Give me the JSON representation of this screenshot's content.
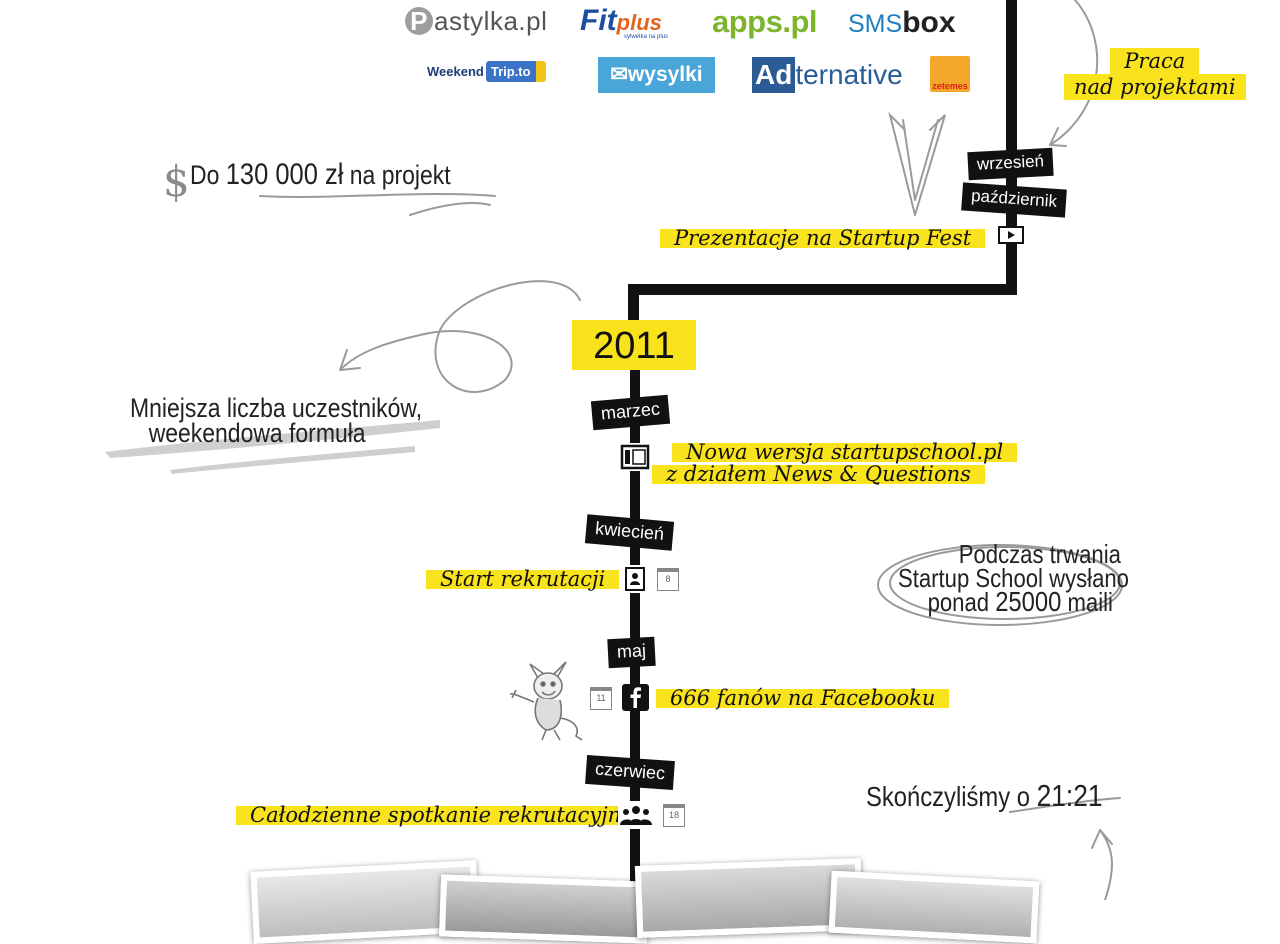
{
  "logos": {
    "pastylka": "astylka.pl",
    "pastylka_mark": "P",
    "fitplus_fit": "Fit",
    "fitplus_plus": "plus",
    "fitplus_tag": "sylwetka na plus",
    "apps": "apps.pl",
    "sms_sms": "SMS",
    "sms_box": "box",
    "weekend": "Weekend",
    "weekend_trip": "Trip.to",
    "wysylki": "✉wysylki",
    "adter_ad": "Ad",
    "adter_rest": "ternative",
    "zetemes": "zetemes"
  },
  "timeline": {
    "year": "2011",
    "months": {
      "wrzesien": "wrzesień",
      "pazdziernik": "październik",
      "marzec": "marzec",
      "kwiecien": "kwiecień",
      "maj": "maj",
      "czerwiec": "czerwiec"
    },
    "events": {
      "startup_fest": "Prezentacje na Startup Fest",
      "nowa_wersja_1": "Nowa wersja startupschool.pl",
      "nowa_wersja_2": "z działem News & Questions",
      "rekrutacja": "Start rekrutacji",
      "facebook": "666 fanów na Facebooku",
      "spotkanie": "Całodzienne spotkanie rekrutacyjne",
      "praca_1": "Praca",
      "praca_2": "nad projektami"
    },
    "calendar_days": {
      "rekrutacja": "8",
      "facebook": "11",
      "spotkanie": "18"
    }
  },
  "notes": {
    "projekt_prefix": "Do ",
    "projekt_amount": "130 000 zł",
    "projekt_suffix": " na projekt",
    "dollar": "$",
    "mniejsza_1": "Mniejsza liczba uczestników,",
    "mniejsza_2": "weekendowa formuła",
    "maile_1": "Podczas trwania",
    "maile_2": "Startup School wysłano",
    "maile_3_prefix": "ponad ",
    "maile_3_num": "25000",
    "maile_3_suffix": " maili",
    "skonczylismy_prefix": "Skończyliśmy o ",
    "skonczylismy_time": "21:21"
  },
  "colors": {
    "highlight": "#f8e31c",
    "line": "#111111",
    "sketch": "#9a9a9a"
  },
  "icons": [
    "presentation-icon",
    "layout-icon",
    "contact-card-icon",
    "calendar-icon",
    "facebook-icon",
    "group-icon",
    "devil-icon"
  ]
}
